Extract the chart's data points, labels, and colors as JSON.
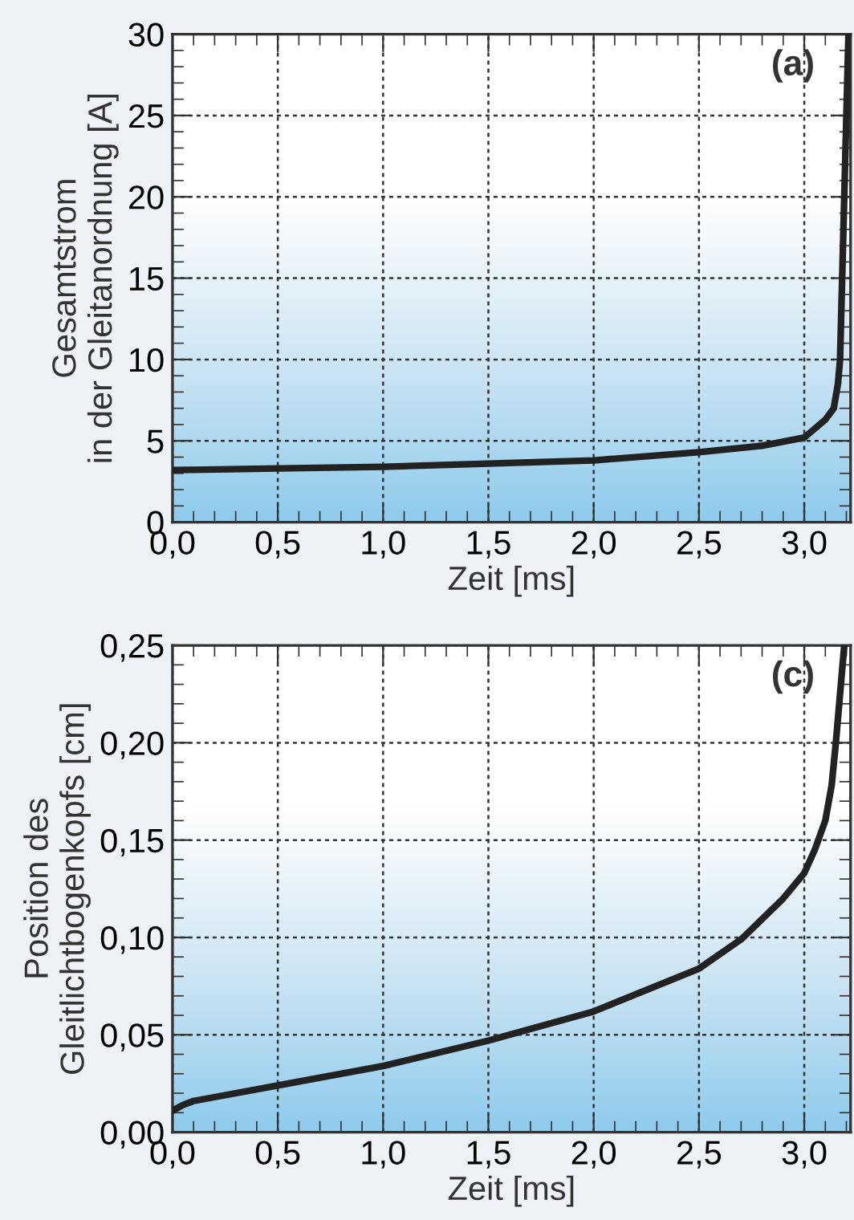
{
  "chart_data": [
    {
      "type": "line",
      "xlabel": "Zeit [ms]",
      "ylabel": "Gesamtstrom\nin der Gleitanordnung [A]",
      "annotations": [
        "(a)"
      ],
      "series": [
        {
          "color": "#222222",
          "x": [
            0,
            0.5,
            1.0,
            1.5,
            2.0,
            2.5,
            2.8,
            3.0,
            3.1,
            3.14,
            3.16,
            3.17,
            3.18,
            3.19,
            3.2,
            3.21
          ],
          "values": [
            3.2,
            3.3,
            3.4,
            3.6,
            3.8,
            4.3,
            4.7,
            5.2,
            6.3,
            7.0,
            8.5,
            10,
            15,
            20,
            25,
            30
          ]
        }
      ],
      "xlim": [
        0,
        3.22
      ],
      "ylim": [
        0,
        30
      ],
      "xticks": [
        {
          "value": 0,
          "label": "0,0"
        },
        {
          "value": 0.5,
          "label": "0,5"
        },
        {
          "value": 1.0,
          "label": "1,0"
        },
        {
          "value": 1.5,
          "label": "1,5"
        },
        {
          "value": 2.0,
          "label": "2,0"
        },
        {
          "value": 2.5,
          "label": "2,5"
        },
        {
          "value": 3.0,
          "label": "3,0"
        }
      ],
      "yticks": [
        0,
        5,
        10,
        15,
        20,
        25,
        30
      ],
      "grid": true,
      "line_style": "solid",
      "marker": "none"
    },
    {
      "type": "line",
      "xlabel": "Zeit [ms]",
      "ylabel": "Position des\nGleitlichtbogenkopfs [cm]",
      "annotations": [
        "(c)"
      ],
      "series": [
        {
          "color": "#222222",
          "x": [
            0,
            0.05,
            0.1,
            0.5,
            1.0,
            1.5,
            2.0,
            2.5,
            2.7,
            2.9,
            3.0,
            3.05,
            3.1,
            3.13,
            3.15,
            3.17,
            3.19
          ],
          "values": [
            0.011,
            0.014,
            0.016,
            0.024,
            0.034,
            0.047,
            0.062,
            0.084,
            0.099,
            0.12,
            0.133,
            0.145,
            0.16,
            0.178,
            0.2,
            0.225,
            0.25
          ]
        }
      ],
      "xlim": [
        0,
        3.22
      ],
      "ylim": [
        0,
        0.25
      ],
      "xticks": [
        {
          "value": 0,
          "label": "0,0"
        },
        {
          "value": 0.5,
          "label": "0,5"
        },
        {
          "value": 1.0,
          "label": "1,0"
        },
        {
          "value": 1.5,
          "label": "1,5"
        },
        {
          "value": 2.0,
          "label": "2,0"
        },
        {
          "value": 2.5,
          "label": "2,5"
        },
        {
          "value": 3.0,
          "label": "3,0"
        }
      ],
      "yticks": [
        {
          "value": 0,
          "label": "0,00"
        },
        {
          "value": 0.05,
          "label": "0,05"
        },
        {
          "value": 0.1,
          "label": "0,10"
        },
        {
          "value": 0.15,
          "label": "0,15"
        },
        {
          "value": 0.2,
          "label": "0,20"
        },
        {
          "value": 0.25,
          "label": "0,25"
        }
      ],
      "grid": true,
      "line_style": "solid",
      "marker": "none"
    }
  ]
}
